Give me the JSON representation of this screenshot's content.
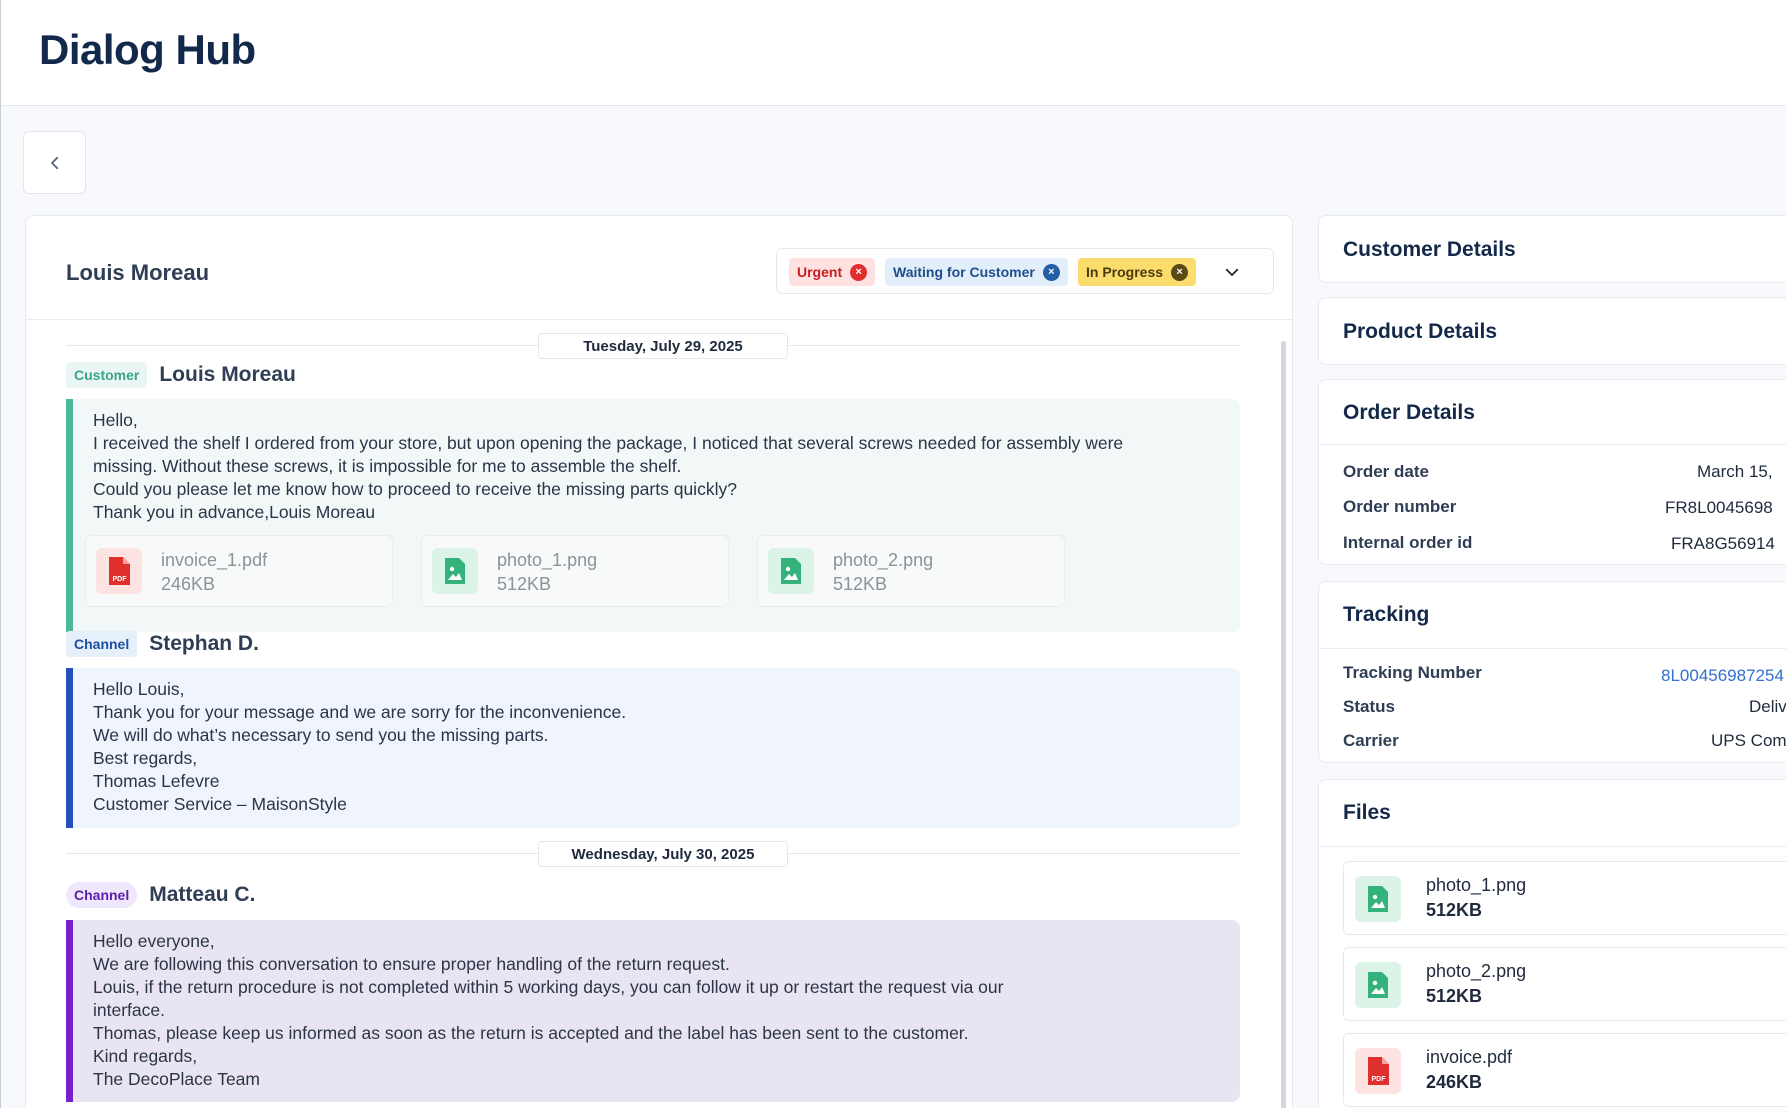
{
  "app": {
    "title": "Dialog Hub"
  },
  "conversation": {
    "customer_name": "Louis Moreau",
    "tags": [
      {
        "label": "Urgent",
        "color": "#c81e1e"
      },
      {
        "label": "Waiting for Customer",
        "color": "#1f4f8a"
      },
      {
        "label": "In Progress",
        "color": "#4b3b10"
      }
    ],
    "remove_glyph": "×",
    "dates": [
      "Tuesday, July 29, 2025",
      "Wednesday, July 30, 2025"
    ],
    "messages": [
      {
        "role": "Customer",
        "author": "Louis Moreau",
        "lines": [
          "Hello,",
          "I received the shelf I ordered from your store, but upon opening the package, I noticed that several screws needed for assembly were",
          "missing. Without these screws, it is impossible for me to assemble the shelf.",
          "Could you please let me know how to proceed to receive the missing parts quickly?",
          "Thank you in advance,Louis Moreau"
        ],
        "attachments": [
          {
            "name": "invoice_1.pdf",
            "size": "246KB",
            "icon": "pdf-file-icon"
          },
          {
            "name": "photo_1.png",
            "size": "512KB",
            "icon": "image-file-icon"
          },
          {
            "name": "photo_2.png",
            "size": "512KB",
            "icon": "image-file-icon"
          }
        ]
      },
      {
        "role": "Channel",
        "author": "Stephan D.",
        "lines": [
          "Hello Louis,",
          "Thank you for your message and we are sorry for the inconvenience.",
          "We will do what’s necessary to send you the missing parts.",
          "Best regards,",
          "Thomas Lefevre",
          "Customer Service – MaisonStyle"
        ]
      },
      {
        "role": "Channel",
        "author": "Matteau C.",
        "lines": [
          "Hello everyone,",
          "We are following this conversation to ensure proper handling of the return request.",
          "Louis, if the return procedure is not completed within 5 working days, you can follow it up or restart the request via our",
          "interface.",
          "Thomas, please keep us informed as soon as the return is accepted and the label has been sent to the customer.",
          "Kind regards,",
          "The DecoPlace Team"
        ]
      }
    ]
  },
  "sidebar": {
    "customer_details": {
      "title": "Customer Details"
    },
    "product_details": {
      "title": "Product Details"
    },
    "order_details": {
      "title": "Order Details",
      "rows": [
        {
          "label": "Order date",
          "value": "March 15,"
        },
        {
          "label": "Order number",
          "value": "FR8L0045698"
        },
        {
          "label": "Internal order id",
          "value": "FRA8G56914"
        }
      ]
    },
    "tracking": {
      "title": "Tracking",
      "rows": [
        {
          "label": "Tracking Number",
          "value": "8L00456987254"
        },
        {
          "label": "Status",
          "value": "Deliv"
        },
        {
          "label": "Carrier",
          "value": "UPS Com"
        }
      ]
    },
    "files": {
      "title": "Files",
      "items": [
        {
          "name": "photo_1.png",
          "size": "512KB",
          "icon": "image-file-icon",
          "action": "L"
        },
        {
          "name": "photo_2.png",
          "size": "512KB",
          "icon": "image-file-icon",
          "action": "L"
        },
        {
          "name": "invoice.pdf",
          "size": "246KB",
          "icon": "pdf-file-icon",
          "action": "L"
        }
      ]
    }
  },
  "colors": {
    "brand_title": "#13294b",
    "customer_accent": "#4db79a",
    "channel_blue_accent": "#2450b8",
    "channel_purple_accent": "#7620c9",
    "link": "#2f6fd6"
  }
}
